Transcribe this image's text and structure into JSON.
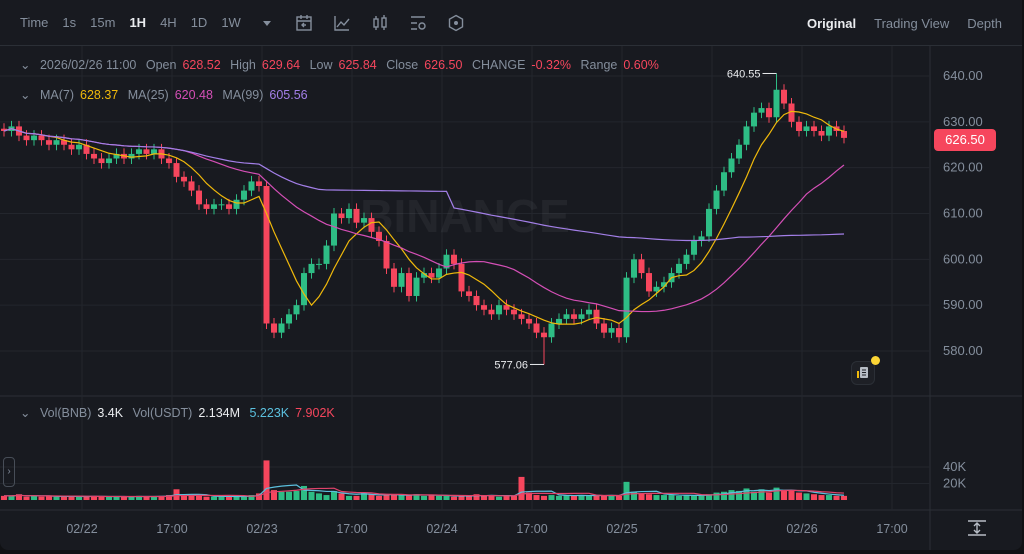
{
  "toolbar": {
    "timeframes": [
      "Time",
      "1s",
      "15m",
      "1H",
      "4H",
      "1D",
      "1W"
    ],
    "active": "1H",
    "icons": [
      "chevron-down-icon",
      "calendar-icon",
      "line-chart-icon",
      "candlestick-icon",
      "indicator-settings-icon",
      "hexagon-settings-icon"
    ],
    "views": [
      "Original",
      "Trading View",
      "Depth"
    ],
    "active_view": "Original"
  },
  "ohlc": {
    "date": "2026/02/26 11:00",
    "open_label": "Open",
    "open": "628.52",
    "high_label": "High",
    "high": "629.64",
    "low_label": "Low",
    "low": "625.84",
    "close_label": "Close",
    "close": "626.50",
    "change_label": "CHANGE",
    "change": "-0.32%",
    "range_label": "Range",
    "range": "0.60%"
  },
  "ma": {
    "ma7_label": "MA(7)",
    "ma7": "628.37",
    "ma25_label": "MA(25)",
    "ma25": "620.48",
    "ma99_label": "MA(99)",
    "ma99": "605.56"
  },
  "vol": {
    "bnb_label": "Vol(BNB)",
    "bnb": "3.4K",
    "usdt_label": "Vol(USDT)",
    "usdt": "2.134M",
    "ma5": "5.223K",
    "ma10": "7.902K"
  },
  "watermark": "BINANCE",
  "current_price": "626.50",
  "colors": {
    "up": "#2ebd85",
    "down": "#f6465d",
    "ma7": "#f0b90b",
    "ma25": "#d44fb6",
    "ma99": "#a37fe8",
    "vol_ma5": "#5bc0de",
    "vol_ma10": "#e0436b"
  },
  "chart_data": {
    "type": "candlestick",
    "interval": "1H",
    "price_ticks": [
      "640.00",
      "630.00",
      "620.00",
      "610.00",
      "600.00",
      "590.00",
      "580.00"
    ],
    "price_range": [
      572,
      648
    ],
    "volume_ticks": [
      "40K",
      "20K"
    ],
    "time_labels": [
      "02/22",
      "17:00",
      "02/23",
      "17:00",
      "02/24",
      "17:00",
      "02/25",
      "17:00",
      "02/26",
      "17:00"
    ],
    "high_marker": "640.55",
    "low_marker": "577.06",
    "closes": [
      628,
      629,
      627,
      626,
      627,
      626,
      625,
      626,
      625,
      624,
      625,
      623,
      622,
      621,
      622,
      623,
      622,
      623,
      624,
      623,
      624,
      622,
      621,
      618,
      617,
      615,
      612,
      611,
      612,
      612,
      611,
      613,
      615,
      617,
      616,
      586,
      584,
      586,
      588,
      590,
      597,
      599,
      599,
      603,
      610,
      609,
      611,
      608,
      609,
      606,
      604,
      598,
      594,
      597,
      592,
      596,
      597,
      596,
      598,
      601,
      599,
      593,
      592,
      590,
      589,
      588,
      590,
      589,
      588,
      587,
      586,
      584,
      583,
      586,
      587,
      588,
      587,
      588,
      589,
      586,
      584,
      585,
      583,
      596,
      600,
      597,
      593,
      594,
      595,
      597,
      599,
      601,
      604,
      605,
      611,
      615,
      619,
      622,
      625,
      629,
      632,
      633,
      631,
      637,
      634,
      630,
      628,
      629,
      628,
      627,
      629,
      628,
      626.5
    ],
    "volumes_k": [
      5,
      5,
      7,
      4,
      5,
      4,
      5,
      4,
      4,
      5,
      4,
      4,
      5,
      4,
      4,
      4,
      4,
      4,
      5,
      4,
      4,
      5,
      6,
      13,
      5,
      5,
      5,
      4,
      4,
      4,
      5,
      4,
      4,
      6,
      8,
      48,
      12,
      10,
      10,
      11,
      17,
      10,
      8,
      6,
      11,
      8,
      5,
      5,
      9,
      7,
      5,
      6,
      6,
      6,
      6,
      7,
      5,
      6,
      5,
      5,
      4,
      5,
      5,
      7,
      5,
      6,
      4,
      5,
      5,
      28,
      9,
      6,
      5,
      6,
      5,
      6,
      5,
      6,
      5,
      6,
      5,
      6,
      5,
      22,
      10,
      8,
      7,
      6,
      6,
      6,
      5,
      6,
      5,
      6,
      7,
      9,
      10,
      12,
      11,
      14,
      10,
      13,
      9,
      15,
      12,
      11,
      9,
      8,
      7,
      6,
      6,
      5,
      5
    ]
  }
}
